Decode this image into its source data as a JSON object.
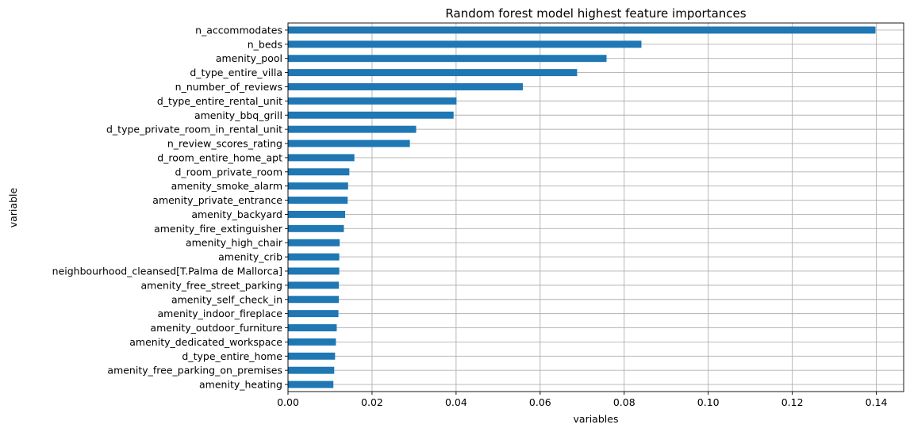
{
  "chart_data": {
    "type": "bar",
    "orientation": "horizontal",
    "title": "Random forest model highest feature importances",
    "xlabel": "variables",
    "ylabel": "variable",
    "xlim": [
      0,
      0.1465
    ],
    "xticks": [
      0.0,
      0.02,
      0.04,
      0.06,
      0.08,
      0.1,
      0.12,
      0.14
    ],
    "xtick_labels": [
      "0.00",
      "0.02",
      "0.04",
      "0.06",
      "0.08",
      "0.10",
      "0.12",
      "0.14"
    ],
    "grid": true,
    "bar_color": "#1f77b4",
    "categories": [
      "n_accommodates",
      "n_beds",
      "amenity_pool",
      "d_type_entire_villa",
      "n_number_of_reviews",
      "d_type_entire_rental_unit",
      "amenity_bbq_grill",
      "d_type_private_room_in_rental_unit",
      "n_review_scores_rating",
      "d_room_entire_home_apt",
      "d_room_private_room",
      "amenity_smoke_alarm",
      "amenity_private_entrance",
      "amenity_backyard",
      "amenity_fire_extinguisher",
      "amenity_high_chair",
      "amenity_crib",
      "neighbourhood_cleansed[T.Palma de Mallorca]",
      "amenity_free_street_parking",
      "amenity_self_check_in",
      "amenity_indoor_fireplace",
      "amenity_outdoor_furniture",
      "amenity_dedicated_workspace",
      "d_type_entire_home",
      "amenity_free_parking_on_premises",
      "amenity_heating"
    ],
    "values": [
      0.1398,
      0.0841,
      0.0758,
      0.0688,
      0.0559,
      0.0401,
      0.0394,
      0.0305,
      0.029,
      0.0158,
      0.0146,
      0.0143,
      0.0142,
      0.0136,
      0.0133,
      0.0123,
      0.0122,
      0.0122,
      0.0121,
      0.0121,
      0.012,
      0.0116,
      0.0114,
      0.0112,
      0.011,
      0.0108
    ]
  }
}
